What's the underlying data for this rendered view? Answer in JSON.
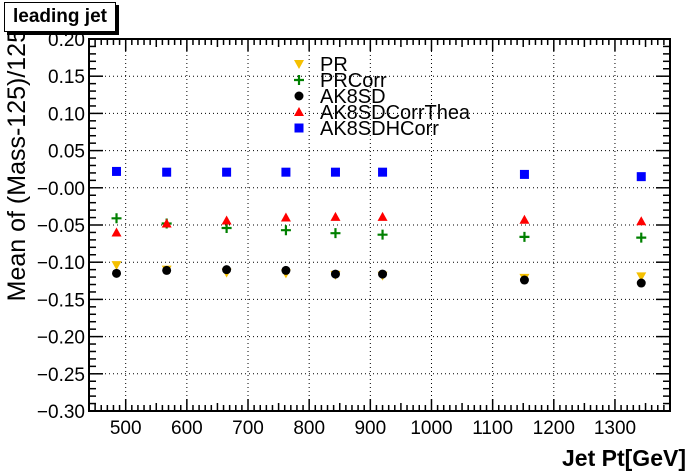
{
  "chart_data": {
    "type": "scatter",
    "title": "leading jet",
    "xlabel": "Jet Pt[GeV]",
    "ylabel": "Mean of (Mass-125)/125",
    "xlim": [
      440,
      1390
    ],
    "ylim": [
      -0.3,
      0.2
    ],
    "xticks": [
      "500",
      "600",
      "700",
      "800",
      "900",
      "1000",
      "1100",
      "1200",
      "1300"
    ],
    "yticks": [
      "−0.30",
      "−0.25",
      "−0.20",
      "−0.15",
      "−0.10",
      "−0.05",
      "−0.00",
      "0.05",
      "0.10",
      "0.15",
      "0.20"
    ],
    "grid": true,
    "legend_position": "top-center",
    "series": [
      {
        "name": "PR",
        "marker": "triangle-down",
        "color": "#f5c000",
        "x": [
          485,
          567,
          665,
          762,
          843,
          920,
          1152,
          1343
        ],
        "y": [
          -0.104,
          -0.11,
          -0.114,
          -0.115,
          -0.117,
          -0.118,
          -0.121,
          -0.119
        ]
      },
      {
        "name": "PRCorr",
        "marker": "cross",
        "color": "#008000",
        "x": [
          485,
          567,
          665,
          762,
          843,
          920,
          1152,
          1343
        ],
        "y": [
          -0.041,
          -0.048,
          -0.054,
          -0.057,
          -0.061,
          -0.063,
          -0.066,
          -0.067
        ]
      },
      {
        "name": "AK8SD",
        "marker": "circle",
        "color": "#000000",
        "x": [
          485,
          567,
          665,
          762,
          843,
          920,
          1152,
          1343
        ],
        "y": [
          -0.115,
          -0.111,
          -0.11,
          -0.111,
          -0.116,
          -0.116,
          -0.124,
          -0.128
        ]
      },
      {
        "name": "AK8SDCorrThea",
        "marker": "triangle-up",
        "color": "#ff0000",
        "x": [
          485,
          567,
          665,
          762,
          843,
          920,
          1152,
          1343
        ],
        "y": [
          -0.06,
          -0.048,
          -0.044,
          -0.04,
          -0.039,
          -0.039,
          -0.043,
          -0.045
        ]
      },
      {
        "name": "AK8SDHCorr",
        "marker": "square",
        "color": "#0000ff",
        "x": [
          485,
          567,
          665,
          762,
          843,
          920,
          1152,
          1343
        ],
        "y": [
          0.022,
          0.021,
          0.021,
          0.021,
          0.021,
          0.021,
          0.018,
          0.015
        ]
      }
    ]
  }
}
